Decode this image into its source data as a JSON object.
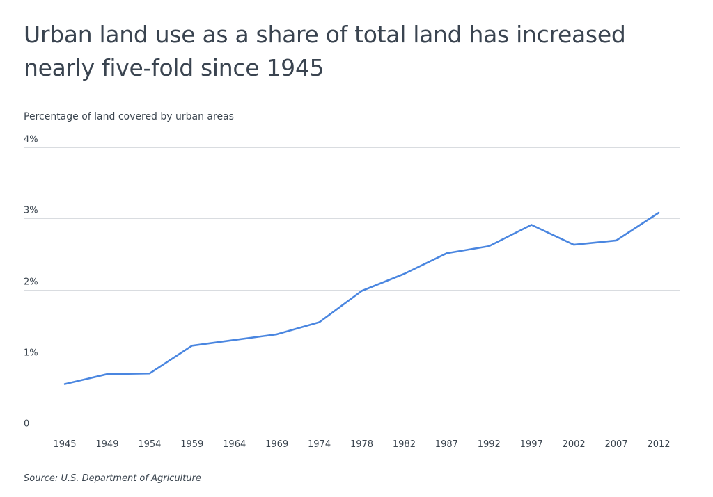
{
  "title": "Urban land use as a share of total land has increased nearly five-fold since 1945",
  "subtitle": "Percentage of land covered by urban areas",
  "source": "Source:  U.S. Department of Agriculture",
  "colors": {
    "line": "#4a86e0",
    "grid": "#d9dce0",
    "text": "#3c4650"
  },
  "chart_data": {
    "type": "line",
    "title": "Urban land use as a share of total land has increased nearly five-fold since 1945",
    "ylabel": "Percentage of land covered by urban areas",
    "xlabel": "",
    "grid": true,
    "ylim": [
      0,
      4
    ],
    "y_ticks": [
      {
        "value": 0,
        "label": "0"
      },
      {
        "value": 1,
        "label": "1%"
      },
      {
        "value": 2,
        "label": "2%"
      },
      {
        "value": 3,
        "label": "3%"
      },
      {
        "value": 4,
        "label": "4%"
      }
    ],
    "categories": [
      "1945",
      "1949",
      "1954",
      "1959",
      "1964",
      "1969",
      "1974",
      "1978",
      "1982",
      "1987",
      "1992",
      "1997",
      "2002",
      "2007",
      "2012"
    ],
    "series": [
      {
        "values": [
          0.67,
          0.81,
          0.82,
          1.21,
          1.29,
          1.37,
          1.54,
          1.98,
          2.22,
          2.51,
          2.61,
          2.91,
          2.63,
          2.69,
          3.08
        ]
      }
    ]
  }
}
